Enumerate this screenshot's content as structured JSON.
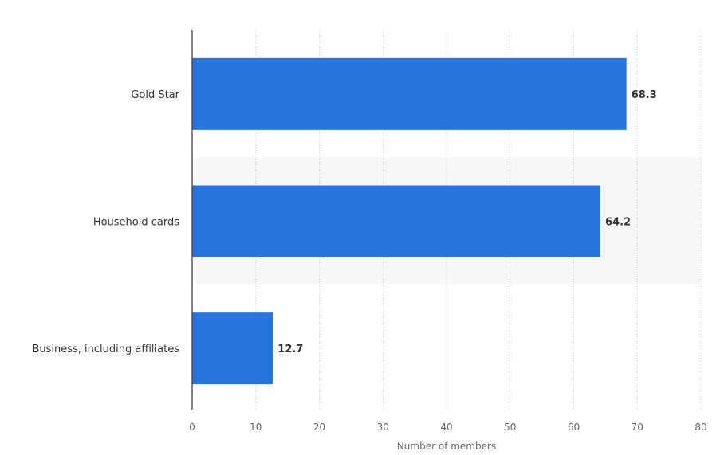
{
  "chart_data": {
    "type": "bar",
    "orientation": "horizontal",
    "categories": [
      "Gold Star",
      "Household cards",
      "Business, including affiliates"
    ],
    "values": [
      68.3,
      64.2,
      12.7
    ],
    "value_labels": [
      "68.3",
      "64.2",
      "12.7"
    ],
    "xlabel": "Number of members",
    "xlim": [
      0,
      80
    ],
    "xticks": [
      0,
      10,
      20,
      30,
      40,
      50,
      60,
      70,
      80
    ],
    "xtick_labels": [
      "0",
      "10",
      "20",
      "30",
      "40",
      "50",
      "60",
      "70",
      "80"
    ],
    "grid": "vertical dotted",
    "colors": {
      "bar": "#2876dd",
      "grid": "#cccccc",
      "axis": "#333333",
      "band": "#f7f7f7"
    }
  }
}
